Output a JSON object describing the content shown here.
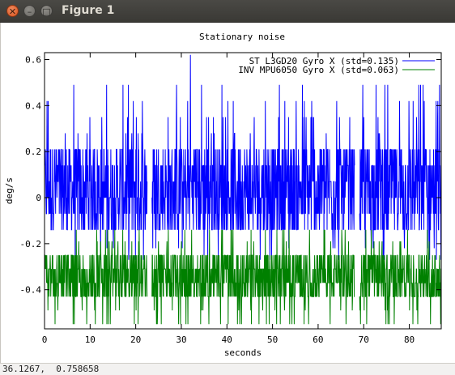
{
  "window": {
    "title": "Figure 1",
    "close_glyph": "✕",
    "minimize_glyph": "–",
    "maximize_glyph": "□"
  },
  "chart_data": {
    "type": "line",
    "title": "Stationary noise",
    "xlabel": "seconds",
    "ylabel": "deg/s",
    "xlim": [
      0,
      87
    ],
    "ylim": [
      -0.57,
      0.63
    ],
    "xticks": [
      "0",
      "10",
      "20",
      "30",
      "40",
      "50",
      "60",
      "70",
      "80"
    ],
    "yticks": [
      "0.6",
      "0.4",
      "0.2",
      "0",
      "-0.2",
      "-0.4"
    ],
    "series": [
      {
        "name": "ST L3GD20 Gyro X (std=0.135)",
        "color": "#0000ff",
        "mean": 0.035,
        "std": 0.135,
        "levels": [
          -0.27,
          -0.22,
          -0.14,
          -0.07,
          0.0,
          0.07,
          0.14,
          0.21,
          0.28,
          0.35,
          0.42,
          0.49
        ],
        "band": [
          -0.14,
          0.21
        ],
        "peak": 0.62
      },
      {
        "name": "INV MPU6050 Gyro X (std=0.063)",
        "color": "#008000",
        "mean": -0.315,
        "std": 0.063,
        "levels": [
          -0.55,
          -0.49,
          -0.43,
          -0.37,
          -0.31,
          -0.25,
          -0.19,
          -0.14
        ],
        "band": [
          -0.43,
          -0.22
        ],
        "trough": -0.55
      }
    ],
    "gaps": [
      [
        22.5,
        23.5
      ],
      [
        68.0,
        69.0
      ]
    ],
    "grid": false,
    "legend": "top-right"
  },
  "status": {
    "coordinates": "36.1267,  0.758658"
  }
}
